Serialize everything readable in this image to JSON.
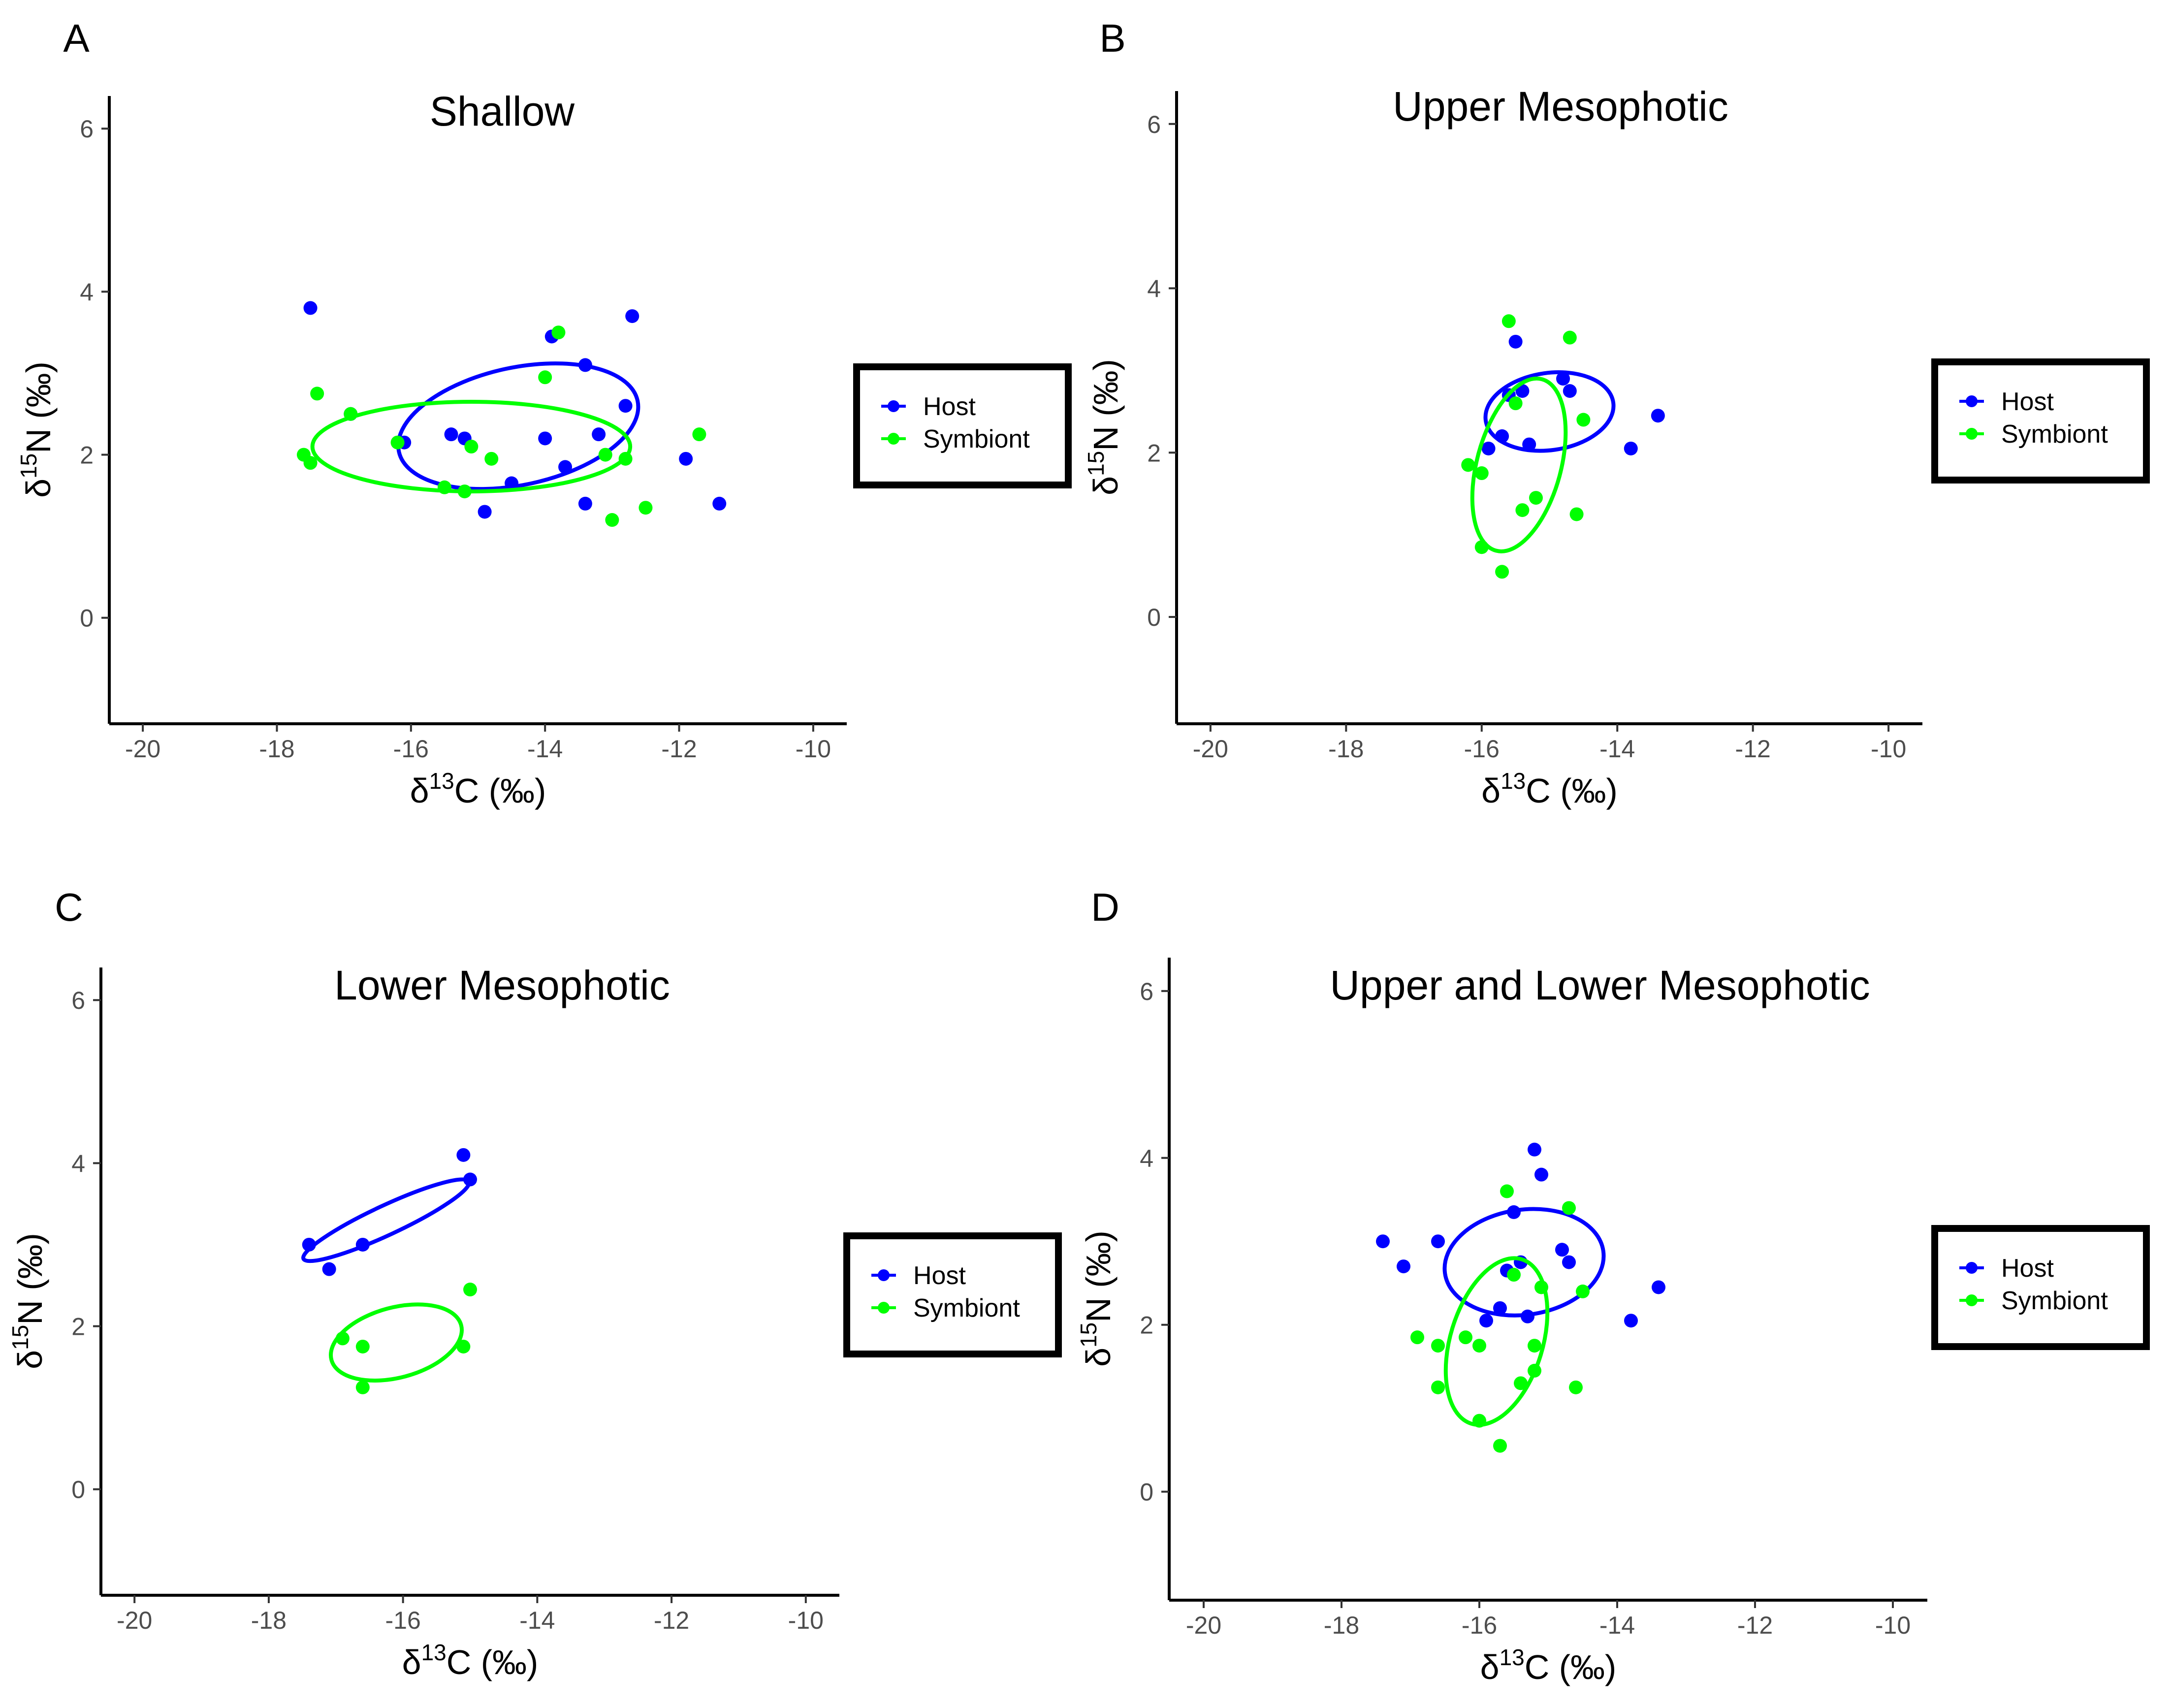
{
  "figure": {
    "panels": [
      "A",
      "B",
      "C",
      "D"
    ],
    "x_axis": {
      "prefix": "δ",
      "sup": "13",
      "rest": "C (‰)"
    },
    "y_axis": {
      "prefix": "δ",
      "sup": "15",
      "rest": "N (‰)"
    }
  },
  "legend": {
    "host": "Host",
    "symbiont": "Symbiont"
  },
  "colors": {
    "host": "#0000ff",
    "symbiont": "#00ff00",
    "axis": "#000000",
    "ticklabel": "#4d4d4d"
  },
  "chart_data": [
    {
      "panel": "A",
      "type": "scatter",
      "title": "Shallow",
      "xlabel": "δ13C (‰)",
      "ylabel": "δ15N (‰)",
      "xlim": [
        -20.5,
        -9.5
      ],
      "ylim": [
        -1.3,
        6.4
      ],
      "xticks": [
        -20,
        -18,
        -16,
        -14,
        -12,
        -10
      ],
      "yticks": [
        0,
        2,
        4,
        6
      ],
      "legend": [
        "Host",
        "Symbiont"
      ],
      "series": [
        {
          "name": "Host",
          "x": [
            -17.5,
            -16.9,
            -16.1,
            -15.4,
            -15.2,
            -14.9,
            -14.5,
            -14.0,
            -13.9,
            -13.7,
            -13.4,
            -13.4,
            -13.2,
            -12.8,
            -12.7,
            -11.9,
            -11.4
          ],
          "y": [
            3.8,
            2.5,
            2.15,
            2.25,
            2.2,
            1.3,
            1.65,
            2.2,
            3.45,
            1.85,
            3.1,
            1.4,
            2.25,
            2.6,
            3.7,
            1.95,
            1.4
          ],
          "ellipse": {
            "cx": -14.4,
            "cy": 2.35,
            "rx": 1.82,
            "ry": 0.72,
            "angle": -12
          }
        },
        {
          "name": "Symbiont",
          "x": [
            -17.6,
            -17.5,
            -17.4,
            -16.9,
            -16.2,
            -15.5,
            -15.2,
            -15.1,
            -14.8,
            -14.0,
            -13.8,
            -13.1,
            -13.0,
            -12.8,
            -12.5,
            -11.7
          ],
          "y": [
            2.0,
            1.9,
            2.75,
            2.5,
            2.15,
            1.6,
            1.55,
            2.1,
            1.95,
            2.95,
            3.5,
            2.0,
            1.2,
            1.95,
            1.35,
            2.25
          ],
          "ellipse": {
            "cx": -15.1,
            "cy": 2.1,
            "rx": 2.37,
            "ry": 0.55,
            "angle": 0
          }
        }
      ]
    },
    {
      "panel": "B",
      "type": "scatter",
      "title": "Upper Mesophotic",
      "xlabel": "δ13C (‰)",
      "ylabel": "δ15N (‰)",
      "xlim": [
        -20.5,
        -9.5
      ],
      "ylim": [
        -1.3,
        6.4
      ],
      "xticks": [
        -20,
        -18,
        -16,
        -14,
        -12,
        -10
      ],
      "yticks": [
        0,
        2,
        4,
        6
      ],
      "legend": [
        "Host",
        "Symbiont"
      ],
      "series": [
        {
          "name": "Host",
          "x": [
            -15.9,
            -15.7,
            -15.6,
            -15.5,
            -15.4,
            -15.3,
            -14.8,
            -14.7,
            -13.8,
            -13.4
          ],
          "y": [
            2.05,
            2.2,
            2.7,
            3.35,
            2.75,
            2.1,
            2.9,
            2.75,
            2.05,
            2.45
          ],
          "ellipse": {
            "cx": -15.0,
            "cy": 2.5,
            "rx": 0.95,
            "ry": 0.47,
            "angle": -8
          }
        },
        {
          "name": "Symbiont",
          "x": [
            -16.2,
            -16.0,
            -16.0,
            -15.6,
            -15.5,
            -15.4,
            -15.2,
            -14.7,
            -14.6,
            -14.5,
            -15.7
          ],
          "y": [
            1.85,
            1.75,
            0.85,
            3.6,
            2.6,
            1.3,
            1.45,
            3.4,
            1.25,
            2.4,
            0.55
          ],
          "ellipse": {
            "cx": -15.45,
            "cy": 1.85,
            "rx": 0.62,
            "ry": 1.08,
            "angle": 15
          }
        }
      ]
    },
    {
      "panel": "C",
      "type": "scatter",
      "title": "Lower Mesophotic",
      "xlabel": "δ13C (‰)",
      "ylabel": "δ15N (‰)",
      "xlim": [
        -20.5,
        -9.5
      ],
      "ylim": [
        -1.3,
        6.4
      ],
      "xticks": [
        -20,
        -18,
        -16,
        -14,
        -12,
        -10
      ],
      "yticks": [
        0,
        2,
        4,
        6
      ],
      "legend": [
        "Host",
        "Symbiont"
      ],
      "series": [
        {
          "name": "Host",
          "x": [
            -17.4,
            -17.1,
            -16.6,
            -15.1,
            -15.0
          ],
          "y": [
            3.0,
            2.7,
            3.0,
            4.1,
            3.8
          ],
          "ellipse": {
            "cx": -16.25,
            "cy": 3.3,
            "rx": 1.36,
            "ry": 0.18,
            "angle": -25
          }
        },
        {
          "name": "Symbiont",
          "x": [
            -16.9,
            -16.6,
            -16.6,
            -15.1,
            -15.0
          ],
          "y": [
            1.85,
            1.75,
            1.25,
            1.75,
            2.45
          ],
          "ellipse": {
            "cx": -16.1,
            "cy": 1.8,
            "rx": 1.0,
            "ry": 0.43,
            "angle": -15
          }
        }
      ]
    },
    {
      "panel": "D",
      "type": "scatter",
      "title": "Upper and Lower Mesophotic",
      "xlabel": "δ13C (‰)",
      "ylabel": "δ15N (‰)",
      "xlim": [
        -20.5,
        -9.5
      ],
      "ylim": [
        -1.3,
        6.4
      ],
      "xticks": [
        -20,
        -18,
        -16,
        -14,
        -12,
        -10
      ],
      "yticks": [
        0,
        2,
        4,
        6
      ],
      "legend": [
        "Host",
        "Symbiont"
      ],
      "series": [
        {
          "name": "Host",
          "x": [
            -17.4,
            -17.1,
            -16.6,
            -15.9,
            -15.7,
            -15.6,
            -15.5,
            -15.4,
            -15.3,
            -15.2,
            -15.1,
            -14.8,
            -14.7,
            -13.8,
            -13.4
          ],
          "y": [
            3.0,
            2.7,
            3.0,
            2.05,
            2.2,
            2.65,
            3.35,
            2.75,
            2.1,
            4.1,
            3.8,
            2.9,
            2.75,
            2.05,
            2.45
          ],
          "ellipse": {
            "cx": -15.35,
            "cy": 2.75,
            "rx": 1.16,
            "ry": 0.63,
            "angle": -8
          }
        },
        {
          "name": "Symbiont",
          "x": [
            -16.9,
            -16.6,
            -16.6,
            -16.2,
            -16.0,
            -16.0,
            -15.6,
            -15.5,
            -15.4,
            -15.2,
            -15.2,
            -15.1,
            -14.7,
            -14.6,
            -14.5,
            -15.7
          ],
          "y": [
            1.85,
            1.75,
            1.25,
            1.85,
            1.75,
            0.85,
            3.6,
            2.6,
            1.3,
            1.45,
            1.75,
            2.45,
            3.4,
            1.25,
            2.4,
            0.55
          ],
          "ellipse": {
            "cx": -15.75,
            "cy": 1.8,
            "rx": 0.67,
            "ry": 1.03,
            "angle": 17
          }
        }
      ]
    }
  ]
}
